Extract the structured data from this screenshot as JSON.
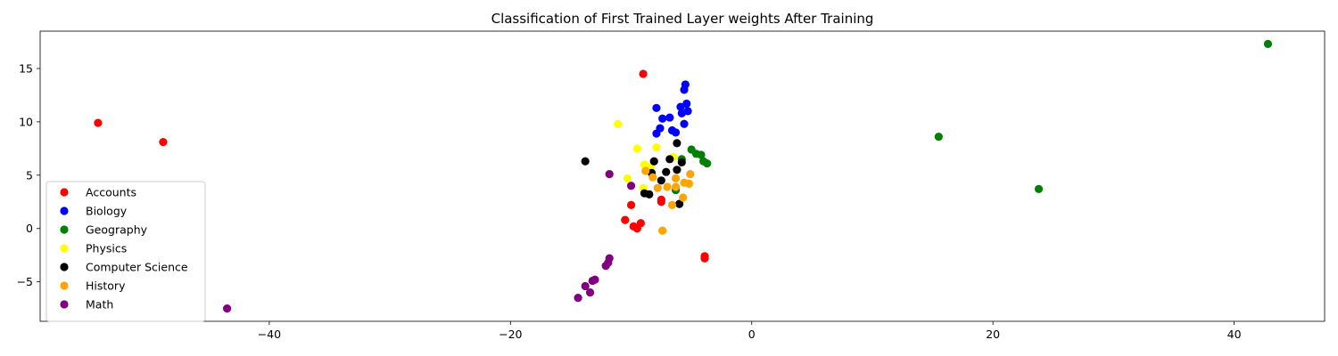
{
  "chart_data": {
    "type": "scatter",
    "title": "Classification of First Trained Layer weights After Training",
    "xlabel": "",
    "ylabel": "",
    "xlim": [
      -59,
      47.5
    ],
    "ylim": [
      -8.7,
      18.5
    ],
    "xticks": [
      -40,
      -20,
      0,
      20,
      40
    ],
    "yticks": [
      -5,
      0,
      5,
      10,
      15
    ],
    "grid": false,
    "legend_position": "lower-left",
    "series": [
      {
        "name": "Accounts",
        "color": "#ff0000",
        "points": [
          [
            -54.2,
            9.9
          ],
          [
            -48.8,
            8.1
          ],
          [
            -9.0,
            14.5
          ],
          [
            -3.9,
            -2.6
          ],
          [
            -3.9,
            -2.8
          ],
          [
            -10.0,
            2.2
          ],
          [
            -10.5,
            0.8
          ],
          [
            -9.8,
            0.2
          ],
          [
            -9.5,
            0.0
          ],
          [
            -9.2,
            0.5
          ],
          [
            -7.5,
            2.5
          ],
          [
            -7.5,
            2.7
          ]
        ]
      },
      {
        "name": "Biology",
        "color": "#0000ff",
        "points": [
          [
            -5.5,
            13.5
          ],
          [
            -5.6,
            13.0
          ],
          [
            -5.4,
            11.7
          ],
          [
            -5.9,
            11.4
          ],
          [
            -5.3,
            11.0
          ],
          [
            -5.8,
            10.8
          ],
          [
            -7.9,
            11.3
          ],
          [
            -7.4,
            10.3
          ],
          [
            -6.8,
            10.4
          ],
          [
            -5.6,
            9.8
          ],
          [
            -7.6,
            9.4
          ],
          [
            -6.6,
            9.2
          ],
          [
            -6.3,
            9.0
          ],
          [
            -7.9,
            8.9
          ]
        ]
      },
      {
        "name": "Geography",
        "color": "#008000",
        "points": [
          [
            42.8,
            17.3
          ],
          [
            15.5,
            8.6
          ],
          [
            23.8,
            3.7
          ],
          [
            -5.0,
            7.4
          ],
          [
            -4.6,
            7.0
          ],
          [
            -4.2,
            6.9
          ],
          [
            -4.0,
            6.3
          ],
          [
            -3.7,
            6.1
          ],
          [
            -5.8,
            6.5
          ],
          [
            -6.3,
            3.6
          ]
        ]
      },
      {
        "name": "Physics",
        "color": "#ffff00",
        "points": [
          [
            -11.1,
            9.8
          ],
          [
            -9.5,
            7.5
          ],
          [
            -7.9,
            7.6
          ],
          [
            -6.5,
            6.7
          ],
          [
            -8.9,
            6.0
          ],
          [
            -10.3,
            4.7
          ],
          [
            -9.0,
            3.8
          ],
          [
            -8.4,
            5.8
          ]
        ]
      },
      {
        "name": "Computer Science",
        "color": "#000000",
        "points": [
          [
            -13.8,
            6.3
          ],
          [
            -6.2,
            8.0
          ],
          [
            -8.1,
            6.3
          ],
          [
            -6.8,
            6.5
          ],
          [
            -5.8,
            6.2
          ],
          [
            -6.2,
            5.5
          ],
          [
            -7.1,
            5.3
          ],
          [
            -8.3,
            5.2
          ],
          [
            -7.5,
            4.5
          ],
          [
            -8.9,
            3.3
          ],
          [
            -8.5,
            3.2
          ],
          [
            -6.0,
            2.3
          ]
        ]
      },
      {
        "name": "History",
        "color": "#ffa500",
        "points": [
          [
            -8.8,
            5.4
          ],
          [
            -8.2,
            4.8
          ],
          [
            -6.3,
            4.7
          ],
          [
            -5.1,
            5.1
          ],
          [
            -5.6,
            4.3
          ],
          [
            -5.2,
            4.2
          ],
          [
            -7.0,
            3.9
          ],
          [
            -7.8,
            3.8
          ],
          [
            -6.3,
            3.9
          ],
          [
            -5.7,
            2.9
          ],
          [
            -6.6,
            2.2
          ],
          [
            -7.4,
            -0.2
          ]
        ]
      },
      {
        "name": "Math",
        "color": "#800080",
        "points": [
          [
            -11.8,
            5.1
          ],
          [
            -10.0,
            4.0
          ],
          [
            -11.8,
            -2.8
          ],
          [
            -11.9,
            -3.2
          ],
          [
            -12.1,
            -3.5
          ],
          [
            -13.0,
            -4.8
          ],
          [
            -13.2,
            -4.9
          ],
          [
            -13.8,
            -5.4
          ],
          [
            -13.4,
            -6.0
          ],
          [
            -14.4,
            -6.5
          ],
          [
            -43.5,
            -7.5
          ]
        ]
      }
    ]
  }
}
